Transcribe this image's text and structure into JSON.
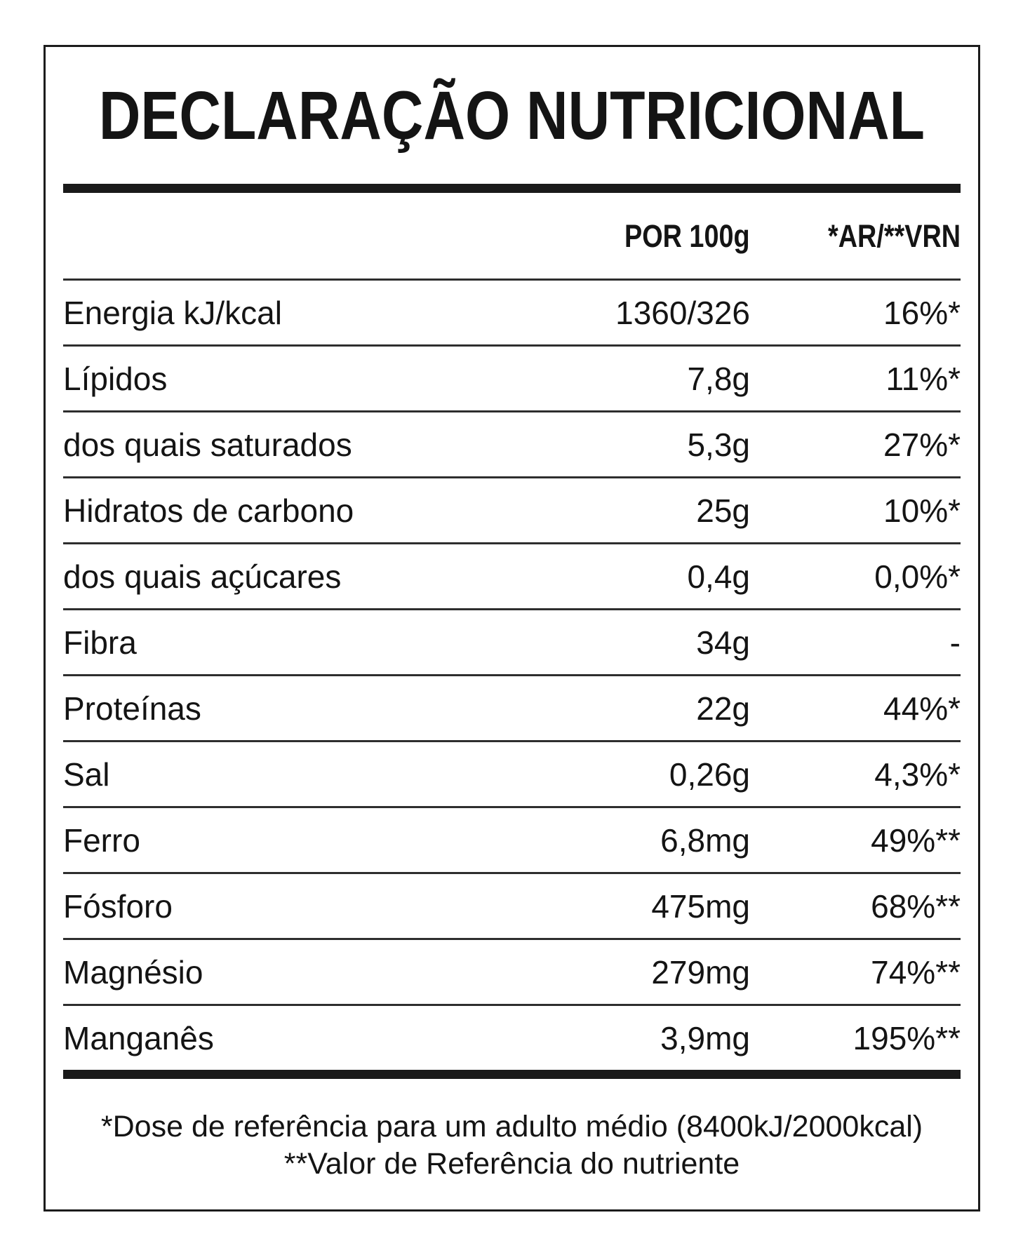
{
  "title": "DECLARAÇÃO NUTRICIONAL",
  "table": {
    "col_value_header": "POR 100g",
    "col_ref_header": "*AR/**VRN",
    "rows": [
      {
        "label": "Energia kJ/kcal",
        "value": "1360/326",
        "ref": "16%*"
      },
      {
        "label": "Lípidos",
        "value": "7,8g",
        "ref": "11%*"
      },
      {
        "label": "dos quais saturados",
        "value": "5,3g",
        "ref": "27%*"
      },
      {
        "label": "Hidratos de carbono",
        "value": "25g",
        "ref": "10%*"
      },
      {
        "label": "dos quais açúcares",
        "value": "0,4g",
        "ref": "0,0%*"
      },
      {
        "label": "Fibra",
        "value": "34g",
        "ref": "-"
      },
      {
        "label": "Proteínas",
        "value": "22g",
        "ref": "44%*"
      },
      {
        "label": "Sal",
        "value": "0,26g",
        "ref": "4,3%*"
      },
      {
        "label": "Ferro",
        "value": "6,8mg",
        "ref": "49%**"
      },
      {
        "label": "Fósforo",
        "value": "475mg",
        "ref": "68%**"
      },
      {
        "label": "Magnésio",
        "value": "279mg",
        "ref": "74%**"
      },
      {
        "label": "Manganês",
        "value": "3,9mg",
        "ref": "195%**"
      }
    ]
  },
  "footnotes": {
    "line1": "*Dose de referência para um adulto médio (8400kJ/2000kcal)",
    "line2": "**Valor de Referência do nutriente"
  },
  "colors": {
    "background": "#ffffff",
    "text": "#141414",
    "thick_rule": "#1a1a1a",
    "row_separator": "#2e2e2e",
    "card_border": "#1c1c1c"
  }
}
